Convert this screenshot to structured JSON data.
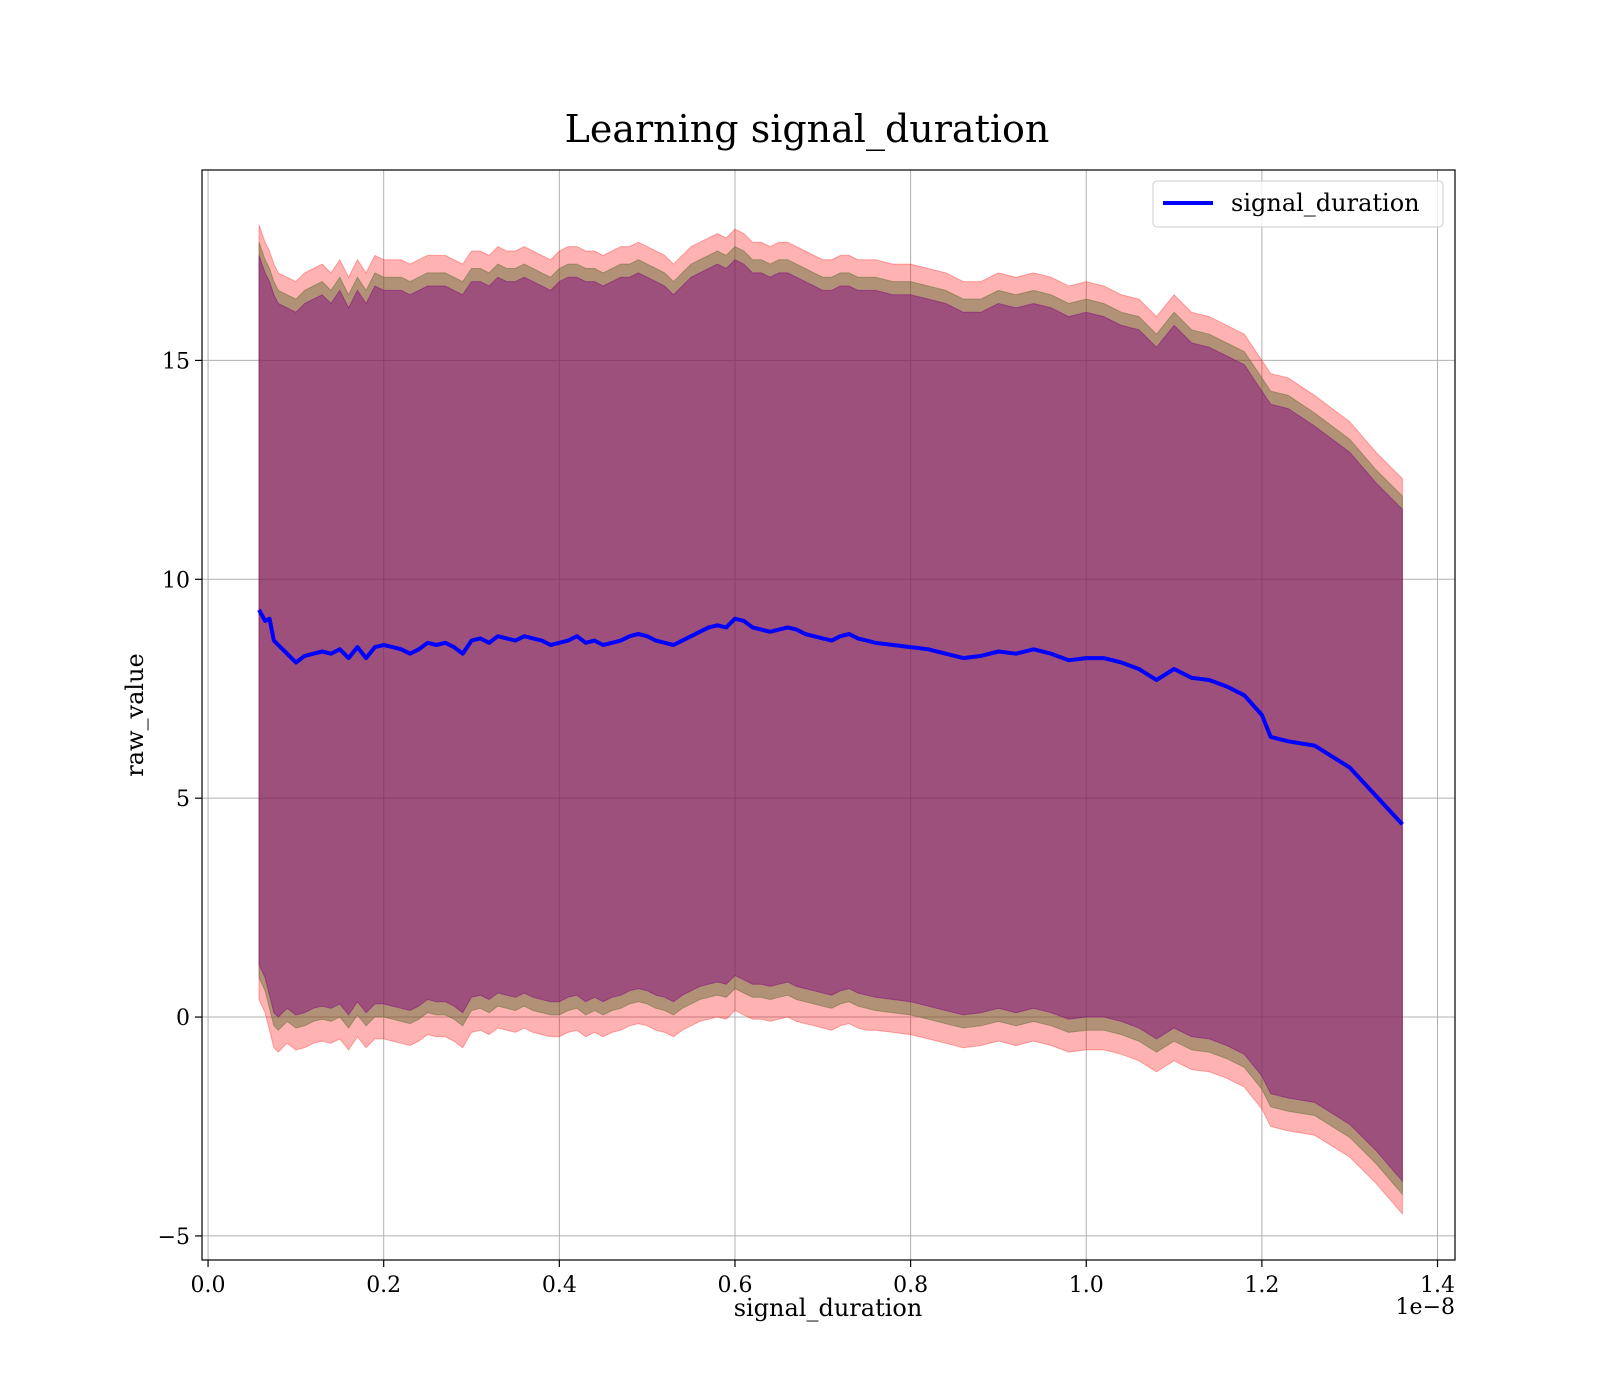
{
  "chart_data": {
    "type": "line",
    "title": "Learning signal_duration",
    "xlabel": "signal_duration",
    "ylabel": "raw_value",
    "x_offset_label": "1e−8",
    "xlim": [
      -0.0069,
      1.4199
    ],
    "ylim": [
      -5.55,
      19.35
    ],
    "x_ticks": [
      0.0,
      0.2,
      0.4,
      0.6,
      0.8,
      1.0,
      1.2,
      1.4
    ],
    "x_tick_labels": [
      "0.0",
      "0.2",
      "0.4",
      "0.6",
      "0.8",
      "1.0",
      "1.2",
      "1.4"
    ],
    "y_ticks": [
      -5,
      0,
      5,
      10,
      15
    ],
    "y_tick_labels": [
      "−5",
      "0",
      "5",
      "10",
      "15"
    ],
    "grid": true,
    "legend_position": "top-right",
    "x": [
      0.058,
      0.065,
      0.07,
      0.075,
      0.08,
      0.09,
      0.1,
      0.11,
      0.12,
      0.13,
      0.14,
      0.15,
      0.16,
      0.17,
      0.18,
      0.19,
      0.2,
      0.21,
      0.22,
      0.23,
      0.24,
      0.25,
      0.26,
      0.27,
      0.28,
      0.29,
      0.3,
      0.31,
      0.32,
      0.33,
      0.34,
      0.35,
      0.36,
      0.37,
      0.38,
      0.39,
      0.4,
      0.41,
      0.42,
      0.43,
      0.44,
      0.45,
      0.46,
      0.47,
      0.48,
      0.49,
      0.5,
      0.51,
      0.52,
      0.53,
      0.54,
      0.55,
      0.56,
      0.57,
      0.58,
      0.59,
      0.6,
      0.61,
      0.62,
      0.63,
      0.64,
      0.65,
      0.66,
      0.67,
      0.68,
      0.69,
      0.7,
      0.71,
      0.72,
      0.73,
      0.74,
      0.75,
      0.76,
      0.78,
      0.8,
      0.82,
      0.84,
      0.86,
      0.88,
      0.9,
      0.92,
      0.94,
      0.96,
      0.98,
      1.0,
      1.02,
      1.04,
      1.06,
      1.08,
      1.1,
      1.12,
      1.14,
      1.16,
      1.18,
      1.2,
      1.21,
      1.23,
      1.26,
      1.3,
      1.33,
      1.36
    ],
    "series": [
      {
        "name": "signal_duration",
        "color": "#0000ff",
        "y": [
          9.3,
          9.05,
          9.1,
          8.6,
          8.5,
          8.3,
          8.1,
          8.25,
          8.3,
          8.35,
          8.3,
          8.4,
          8.2,
          8.45,
          8.2,
          8.45,
          8.5,
          8.45,
          8.4,
          8.3,
          8.4,
          8.55,
          8.5,
          8.55,
          8.45,
          8.3,
          8.6,
          8.65,
          8.55,
          8.7,
          8.65,
          8.6,
          8.7,
          8.65,
          8.6,
          8.5,
          8.55,
          8.6,
          8.7,
          8.55,
          8.6,
          8.5,
          8.55,
          8.6,
          8.7,
          8.75,
          8.7,
          8.6,
          8.55,
          8.5,
          8.6,
          8.7,
          8.8,
          8.9,
          8.95,
          8.9,
          9.1,
          9.05,
          8.9,
          8.85,
          8.8,
          8.85,
          8.9,
          8.85,
          8.75,
          8.7,
          8.65,
          8.6,
          8.7,
          8.75,
          8.65,
          8.6,
          8.55,
          8.5,
          8.45,
          8.4,
          8.3,
          8.2,
          8.25,
          8.35,
          8.3,
          8.4,
          8.3,
          8.15,
          8.2,
          8.2,
          8.1,
          7.95,
          7.7,
          7.95,
          7.75,
          7.7,
          7.55,
          7.35,
          6.9,
          6.4,
          6.3,
          6.2,
          5.7,
          5.05,
          4.4
        ]
      }
    ],
    "bands": [
      {
        "color": "#ff0000",
        "opacity": 0.3,
        "lower": [
          0.4,
          0.1,
          -0.3,
          -0.7,
          -0.8,
          -0.6,
          -0.75,
          -0.7,
          -0.6,
          -0.55,
          -0.6,
          -0.5,
          -0.75,
          -0.45,
          -0.7,
          -0.5,
          -0.5,
          -0.55,
          -0.6,
          -0.65,
          -0.55,
          -0.4,
          -0.45,
          -0.45,
          -0.55,
          -0.7,
          -0.35,
          -0.3,
          -0.4,
          -0.25,
          -0.3,
          -0.35,
          -0.25,
          -0.35,
          -0.4,
          -0.45,
          -0.45,
          -0.35,
          -0.3,
          -0.45,
          -0.35,
          -0.45,
          -0.35,
          -0.3,
          -0.2,
          -0.15,
          -0.2,
          -0.3,
          -0.35,
          -0.45,
          -0.3,
          -0.2,
          -0.1,
          -0.05,
          0.0,
          -0.05,
          0.15,
          0.05,
          -0.05,
          -0.05,
          -0.1,
          -0.05,
          0.0,
          -0.1,
          -0.15,
          -0.2,
          -0.25,
          -0.3,
          -0.2,
          -0.15,
          -0.25,
          -0.3,
          -0.3,
          -0.35,
          -0.4,
          -0.5,
          -0.6,
          -0.7,
          -0.65,
          -0.55,
          -0.65,
          -0.55,
          -0.65,
          -0.8,
          -0.75,
          -0.75,
          -0.85,
          -1.0,
          -1.25,
          -1.0,
          -1.2,
          -1.25,
          -1.4,
          -1.6,
          -2.1,
          -2.5,
          -2.6,
          -2.7,
          -3.2,
          -3.8,
          -4.5
        ],
        "upper": [
          18.1,
          17.7,
          17.5,
          17.2,
          17.0,
          16.9,
          16.8,
          17.0,
          17.1,
          17.2,
          17.0,
          17.3,
          16.9,
          17.3,
          17.0,
          17.4,
          17.3,
          17.3,
          17.3,
          17.2,
          17.3,
          17.4,
          17.4,
          17.4,
          17.3,
          17.2,
          17.5,
          17.5,
          17.4,
          17.6,
          17.5,
          17.5,
          17.6,
          17.5,
          17.4,
          17.3,
          17.5,
          17.6,
          17.6,
          17.5,
          17.5,
          17.4,
          17.5,
          17.6,
          17.6,
          17.7,
          17.6,
          17.5,
          17.4,
          17.2,
          17.4,
          17.6,
          17.7,
          17.8,
          17.9,
          17.8,
          18.0,
          17.9,
          17.7,
          17.7,
          17.6,
          17.7,
          17.7,
          17.6,
          17.5,
          17.4,
          17.3,
          17.3,
          17.4,
          17.4,
          17.3,
          17.3,
          17.3,
          17.2,
          17.2,
          17.1,
          17.0,
          16.8,
          16.8,
          17.0,
          16.9,
          17.0,
          16.9,
          16.7,
          16.8,
          16.7,
          16.5,
          16.4,
          16.0,
          16.5,
          16.1,
          16.0,
          15.8,
          15.6,
          15.0,
          14.7,
          14.6,
          14.2,
          13.6,
          12.9,
          12.3
        ]
      },
      {
        "color": "#556b2f",
        "opacity": 0.45,
        "lower": [
          0.9,
          0.6,
          0.2,
          -0.2,
          -0.3,
          -0.1,
          -0.25,
          -0.2,
          -0.1,
          -0.05,
          -0.1,
          0.0,
          -0.25,
          0.05,
          -0.2,
          0.0,
          0.0,
          -0.05,
          -0.1,
          -0.15,
          -0.05,
          0.1,
          0.05,
          0.05,
          -0.05,
          -0.2,
          0.15,
          0.2,
          0.1,
          0.25,
          0.2,
          0.15,
          0.25,
          0.15,
          0.1,
          0.05,
          0.05,
          0.15,
          0.2,
          0.05,
          0.15,
          0.05,
          0.15,
          0.2,
          0.3,
          0.35,
          0.3,
          0.2,
          0.15,
          0.05,
          0.2,
          0.3,
          0.4,
          0.45,
          0.5,
          0.45,
          0.65,
          0.55,
          0.45,
          0.45,
          0.4,
          0.45,
          0.5,
          0.4,
          0.35,
          0.3,
          0.25,
          0.2,
          0.3,
          0.35,
          0.25,
          0.2,
          0.15,
          0.1,
          0.05,
          -0.05,
          -0.15,
          -0.25,
          -0.2,
          -0.1,
          -0.2,
          -0.1,
          -0.2,
          -0.35,
          -0.3,
          -0.3,
          -0.4,
          -0.55,
          -0.8,
          -0.55,
          -0.75,
          -0.8,
          -0.95,
          -1.15,
          -1.65,
          -2.05,
          -2.15,
          -2.25,
          -2.75,
          -3.35,
          -4.05
        ],
        "upper": [
          17.7,
          17.3,
          17.1,
          16.8,
          16.6,
          16.5,
          16.4,
          16.6,
          16.7,
          16.8,
          16.6,
          16.9,
          16.5,
          16.9,
          16.6,
          17.0,
          16.9,
          16.9,
          16.9,
          16.8,
          16.9,
          17.0,
          17.0,
          17.0,
          16.9,
          16.8,
          17.1,
          17.1,
          17.0,
          17.2,
          17.1,
          17.1,
          17.2,
          17.1,
          17.0,
          16.9,
          17.1,
          17.2,
          17.2,
          17.1,
          17.1,
          17.0,
          17.1,
          17.2,
          17.2,
          17.3,
          17.2,
          17.1,
          17.0,
          16.8,
          17.0,
          17.2,
          17.3,
          17.4,
          17.5,
          17.4,
          17.6,
          17.5,
          17.3,
          17.3,
          17.2,
          17.3,
          17.3,
          17.2,
          17.1,
          17.0,
          16.9,
          16.9,
          17.0,
          17.0,
          16.9,
          16.9,
          16.9,
          16.8,
          16.8,
          16.7,
          16.6,
          16.4,
          16.4,
          16.6,
          16.5,
          16.6,
          16.5,
          16.3,
          16.4,
          16.3,
          16.1,
          16.0,
          15.6,
          16.1,
          15.7,
          15.6,
          15.4,
          15.2,
          14.6,
          14.3,
          14.2,
          13.8,
          13.2,
          12.5,
          11.9
        ]
      },
      {
        "color": "#800080",
        "opacity": 0.45,
        "lower": [
          1.2,
          0.9,
          0.5,
          0.1,
          0.0,
          0.2,
          0.05,
          0.1,
          0.2,
          0.25,
          0.2,
          0.3,
          0.05,
          0.35,
          0.1,
          0.3,
          0.3,
          0.25,
          0.2,
          0.15,
          0.25,
          0.4,
          0.35,
          0.35,
          0.25,
          0.1,
          0.45,
          0.5,
          0.4,
          0.55,
          0.5,
          0.45,
          0.55,
          0.45,
          0.4,
          0.35,
          0.35,
          0.45,
          0.5,
          0.35,
          0.45,
          0.35,
          0.45,
          0.5,
          0.6,
          0.65,
          0.6,
          0.5,
          0.45,
          0.35,
          0.5,
          0.6,
          0.7,
          0.75,
          0.8,
          0.75,
          0.95,
          0.85,
          0.75,
          0.75,
          0.7,
          0.75,
          0.8,
          0.7,
          0.65,
          0.6,
          0.55,
          0.5,
          0.6,
          0.65,
          0.55,
          0.5,
          0.45,
          0.4,
          0.35,
          0.25,
          0.15,
          0.05,
          0.1,
          0.2,
          0.1,
          0.2,
          0.1,
          -0.05,
          0.0,
          0.0,
          -0.1,
          -0.25,
          -0.5,
          -0.25,
          -0.45,
          -0.5,
          -0.65,
          -0.85,
          -1.35,
          -1.75,
          -1.85,
          -1.95,
          -2.45,
          -3.05,
          -3.75
        ],
        "upper": [
          17.4,
          17.0,
          16.8,
          16.5,
          16.3,
          16.2,
          16.1,
          16.3,
          16.4,
          16.5,
          16.3,
          16.6,
          16.2,
          16.6,
          16.3,
          16.7,
          16.6,
          16.6,
          16.6,
          16.5,
          16.6,
          16.7,
          16.7,
          16.7,
          16.6,
          16.5,
          16.8,
          16.8,
          16.7,
          16.9,
          16.8,
          16.8,
          16.9,
          16.8,
          16.7,
          16.6,
          16.8,
          16.9,
          16.9,
          16.8,
          16.8,
          16.7,
          16.8,
          16.9,
          16.9,
          17.0,
          16.9,
          16.8,
          16.7,
          16.5,
          16.7,
          16.9,
          17.0,
          17.1,
          17.2,
          17.1,
          17.3,
          17.2,
          17.0,
          17.0,
          16.9,
          17.0,
          17.0,
          16.9,
          16.8,
          16.7,
          16.6,
          16.6,
          16.7,
          16.7,
          16.6,
          16.6,
          16.6,
          16.5,
          16.5,
          16.4,
          16.3,
          16.1,
          16.1,
          16.3,
          16.2,
          16.3,
          16.2,
          16.0,
          16.1,
          16.0,
          15.8,
          15.7,
          15.3,
          15.8,
          15.4,
          15.3,
          15.1,
          14.9,
          14.3,
          14.0,
          13.9,
          13.5,
          12.9,
          12.2,
          11.6
        ]
      }
    ]
  }
}
